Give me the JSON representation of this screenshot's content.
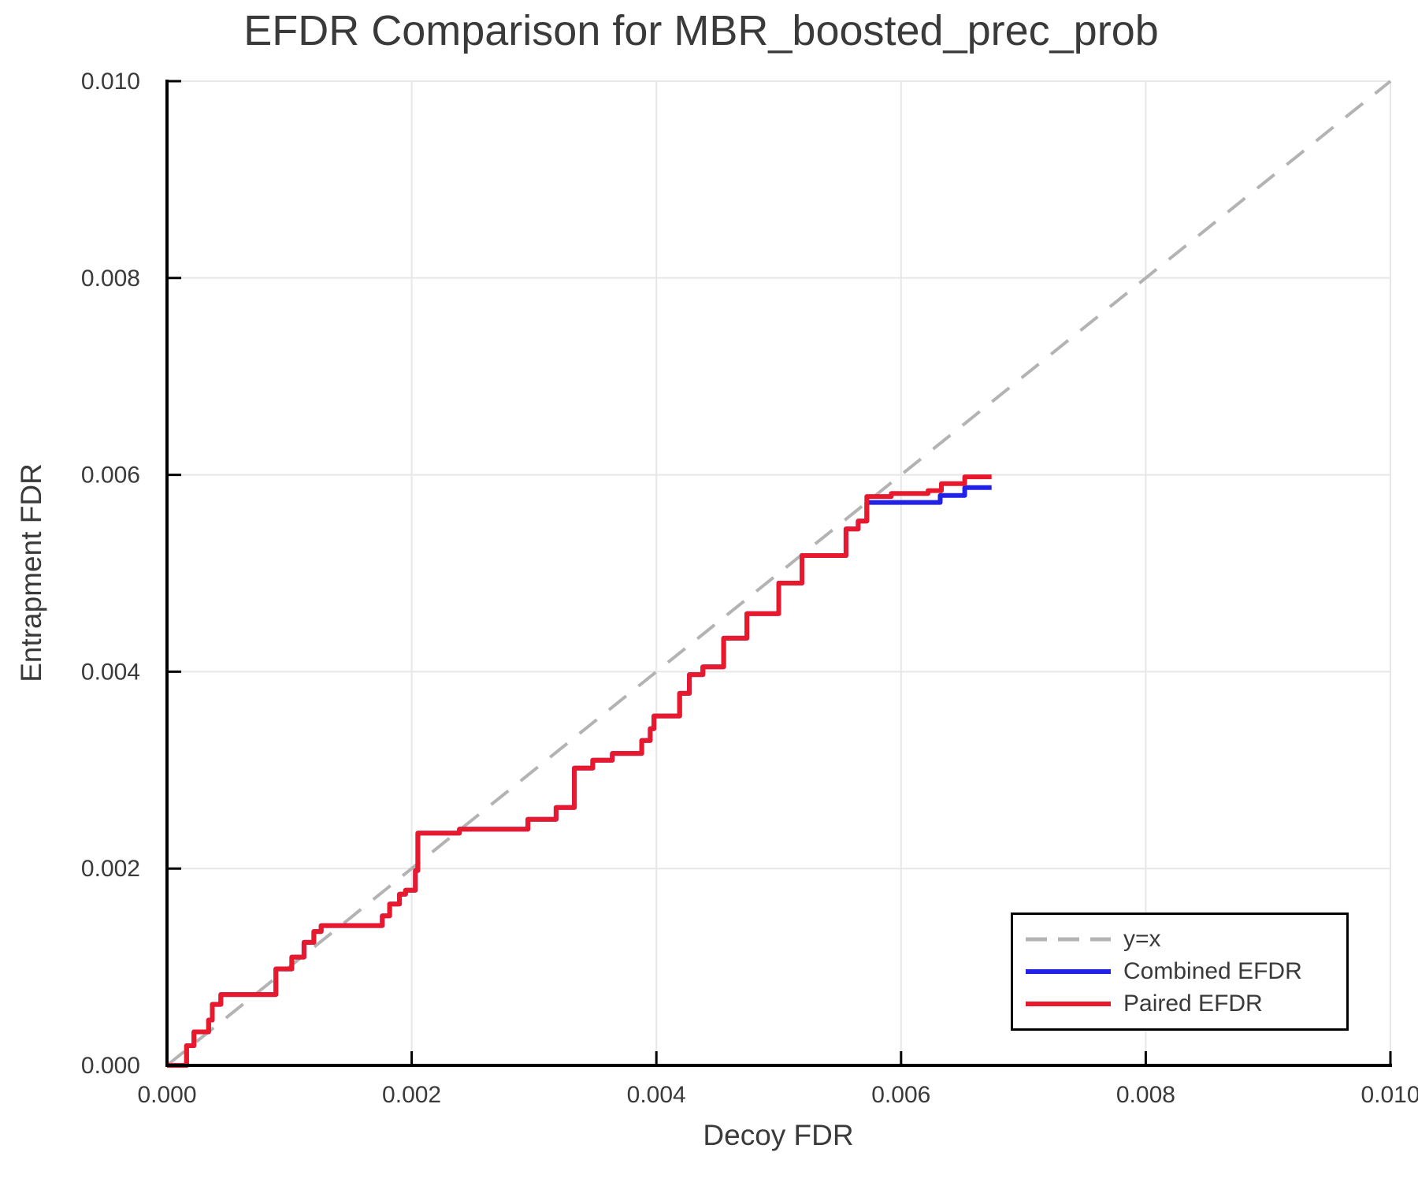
{
  "title": "EFDR Comparison for MBR_boosted_prec_prob",
  "legend": {
    "entries": [
      {
        "label": "y=x",
        "style": "dashed",
        "color": "#b3b3b3"
      },
      {
        "label": "Combined EFDR",
        "style": "solid",
        "color": "#2222e6"
      },
      {
        "label": "Paired EFDR",
        "style": "solid",
        "color": "#e8192c"
      }
    ]
  },
  "colors": {
    "combined_line": "#2222e6",
    "paired_line": "#e8192c",
    "identity_line": "#b3b3b3",
    "grid": "#e7e7e7",
    "axis": "#000000",
    "text": "#3a3a3a",
    "background": "#ffffff"
  },
  "chart_data": {
    "type": "line",
    "title": "EFDR Comparison for MBR_boosted_prec_prob",
    "xlabel": "Decoy FDR",
    "ylabel": "Entrapment FDR",
    "xlim": [
      0.0,
      0.01
    ],
    "ylim": [
      0.0,
      0.01
    ],
    "grid": true,
    "legend_position": "lower right",
    "x_tick_values": [
      0.0,
      0.002,
      0.004,
      0.006,
      0.008,
      0.01
    ],
    "x_tick_labels": [
      "0.000",
      "0.002",
      "0.004",
      "0.006",
      "0.008",
      "0.010"
    ],
    "y_tick_values": [
      0.0,
      0.002,
      0.004,
      0.006,
      0.008,
      0.01
    ],
    "y_tick_labels": [
      "0.000",
      "0.002",
      "0.004",
      "0.006",
      "0.008",
      "0.010"
    ],
    "reference_line": {
      "name": "y=x",
      "from": [
        0.0,
        0.0
      ],
      "to": [
        0.01,
        0.01
      ],
      "style": "dashed",
      "color": "#b3b3b3"
    },
    "series": [
      {
        "name": "Combined EFDR",
        "color": "#2222e6",
        "points": [
          [
            0.0,
            0.0
          ],
          [
            0.00016,
            0.0
          ],
          [
            0.00016,
            0.0002
          ],
          [
            0.00022,
            0.0002
          ],
          [
            0.00022,
            0.00034
          ],
          [
            0.00034,
            0.00034
          ],
          [
            0.00034,
            0.00046
          ],
          [
            0.00037,
            0.00046
          ],
          [
            0.00037,
            0.00062
          ],
          [
            0.00044,
            0.00062
          ],
          [
            0.00044,
            0.00072
          ],
          [
            0.00089,
            0.00072
          ],
          [
            0.00089,
            0.00098
          ],
          [
            0.00102,
            0.00098
          ],
          [
            0.00102,
            0.0011
          ],
          [
            0.00112,
            0.0011
          ],
          [
            0.00112,
            0.00125
          ],
          [
            0.0012,
            0.00125
          ],
          [
            0.0012,
            0.00136
          ],
          [
            0.00126,
            0.00136
          ],
          [
            0.00126,
            0.00142
          ],
          [
            0.00176,
            0.00142
          ],
          [
            0.00176,
            0.00152
          ],
          [
            0.00182,
            0.00152
          ],
          [
            0.00182,
            0.00164
          ],
          [
            0.0019,
            0.00164
          ],
          [
            0.0019,
            0.00174
          ],
          [
            0.00195,
            0.00174
          ],
          [
            0.00195,
            0.00178
          ],
          [
            0.00203,
            0.00178
          ],
          [
            0.00203,
            0.00198
          ],
          [
            0.00205,
            0.00198
          ],
          [
            0.00205,
            0.00236
          ],
          [
            0.00239,
            0.00236
          ],
          [
            0.00239,
            0.0024
          ],
          [
            0.00295,
            0.0024
          ],
          [
            0.00295,
            0.0025
          ],
          [
            0.00318,
            0.0025
          ],
          [
            0.00318,
            0.00262
          ],
          [
            0.00333,
            0.00262
          ],
          [
            0.00333,
            0.00302
          ],
          [
            0.00348,
            0.00302
          ],
          [
            0.00348,
            0.0031
          ],
          [
            0.00364,
            0.0031
          ],
          [
            0.00364,
            0.00317
          ],
          [
            0.00388,
            0.00317
          ],
          [
            0.00388,
            0.0033
          ],
          [
            0.00395,
            0.0033
          ],
          [
            0.00395,
            0.00342
          ],
          [
            0.00398,
            0.00342
          ],
          [
            0.00398,
            0.00355
          ],
          [
            0.00419,
            0.00355
          ],
          [
            0.00419,
            0.00378
          ],
          [
            0.00427,
            0.00378
          ],
          [
            0.00427,
            0.00397
          ],
          [
            0.00438,
            0.00397
          ],
          [
            0.00438,
            0.00405
          ],
          [
            0.00455,
            0.00405
          ],
          [
            0.00455,
            0.00434
          ],
          [
            0.00474,
            0.00434
          ],
          [
            0.00474,
            0.00459
          ],
          [
            0.005,
            0.00459
          ],
          [
            0.005,
            0.0049
          ],
          [
            0.00519,
            0.0049
          ],
          [
            0.00519,
            0.00518
          ],
          [
            0.00555,
            0.00518
          ],
          [
            0.00555,
            0.00545
          ],
          [
            0.00565,
            0.00545
          ],
          [
            0.00565,
            0.00553
          ],
          [
            0.00572,
            0.00553
          ],
          [
            0.00572,
            0.00572
          ],
          [
            0.00632,
            0.00572
          ],
          [
            0.00632,
            0.00579
          ],
          [
            0.00652,
            0.00579
          ],
          [
            0.00652,
            0.00587
          ],
          [
            0.00674,
            0.00587
          ]
        ]
      },
      {
        "name": "Paired EFDR",
        "color": "#e8192c",
        "points": [
          [
            0.0,
            0.0
          ],
          [
            0.00016,
            0.0
          ],
          [
            0.00016,
            0.0002
          ],
          [
            0.00022,
            0.0002
          ],
          [
            0.00022,
            0.00034
          ],
          [
            0.00034,
            0.00034
          ],
          [
            0.00034,
            0.00046
          ],
          [
            0.00037,
            0.00046
          ],
          [
            0.00037,
            0.00062
          ],
          [
            0.00044,
            0.00062
          ],
          [
            0.00044,
            0.00072
          ],
          [
            0.00089,
            0.00072
          ],
          [
            0.00089,
            0.00098
          ],
          [
            0.00102,
            0.00098
          ],
          [
            0.00102,
            0.0011
          ],
          [
            0.00112,
            0.0011
          ],
          [
            0.00112,
            0.00125
          ],
          [
            0.0012,
            0.00125
          ],
          [
            0.0012,
            0.00136
          ],
          [
            0.00126,
            0.00136
          ],
          [
            0.00126,
            0.00142
          ],
          [
            0.00176,
            0.00142
          ],
          [
            0.00176,
            0.00152
          ],
          [
            0.00182,
            0.00152
          ],
          [
            0.00182,
            0.00164
          ],
          [
            0.0019,
            0.00164
          ],
          [
            0.0019,
            0.00174
          ],
          [
            0.00195,
            0.00174
          ],
          [
            0.00195,
            0.00178
          ],
          [
            0.00203,
            0.00178
          ],
          [
            0.00203,
            0.00198
          ],
          [
            0.00205,
            0.00198
          ],
          [
            0.00205,
            0.00236
          ],
          [
            0.00239,
            0.00236
          ],
          [
            0.00239,
            0.0024
          ],
          [
            0.00295,
            0.0024
          ],
          [
            0.00295,
            0.0025
          ],
          [
            0.00318,
            0.0025
          ],
          [
            0.00318,
            0.00262
          ],
          [
            0.00333,
            0.00262
          ],
          [
            0.00333,
            0.00302
          ],
          [
            0.00348,
            0.00302
          ],
          [
            0.00348,
            0.0031
          ],
          [
            0.00364,
            0.0031
          ],
          [
            0.00364,
            0.00317
          ],
          [
            0.00388,
            0.00317
          ],
          [
            0.00388,
            0.0033
          ],
          [
            0.00395,
            0.0033
          ],
          [
            0.00395,
            0.00342
          ],
          [
            0.00398,
            0.00342
          ],
          [
            0.00398,
            0.00355
          ],
          [
            0.00419,
            0.00355
          ],
          [
            0.00419,
            0.00378
          ],
          [
            0.00427,
            0.00378
          ],
          [
            0.00427,
            0.00397
          ],
          [
            0.00438,
            0.00397
          ],
          [
            0.00438,
            0.00405
          ],
          [
            0.00455,
            0.00405
          ],
          [
            0.00455,
            0.00434
          ],
          [
            0.00474,
            0.00434
          ],
          [
            0.00474,
            0.00459
          ],
          [
            0.005,
            0.00459
          ],
          [
            0.005,
            0.0049
          ],
          [
            0.00519,
            0.0049
          ],
          [
            0.00519,
            0.00518
          ],
          [
            0.00555,
            0.00518
          ],
          [
            0.00555,
            0.00545
          ],
          [
            0.00565,
            0.00545
          ],
          [
            0.00565,
            0.00553
          ],
          [
            0.00572,
            0.00553
          ],
          [
            0.00572,
            0.00578
          ],
          [
            0.00592,
            0.00578
          ],
          [
            0.00592,
            0.00581
          ],
          [
            0.00622,
            0.00581
          ],
          [
            0.00622,
            0.00584
          ],
          [
            0.00633,
            0.00584
          ],
          [
            0.00633,
            0.00591
          ],
          [
            0.00652,
            0.00591
          ],
          [
            0.00652,
            0.00598
          ],
          [
            0.00674,
            0.00598
          ]
        ]
      }
    ]
  }
}
